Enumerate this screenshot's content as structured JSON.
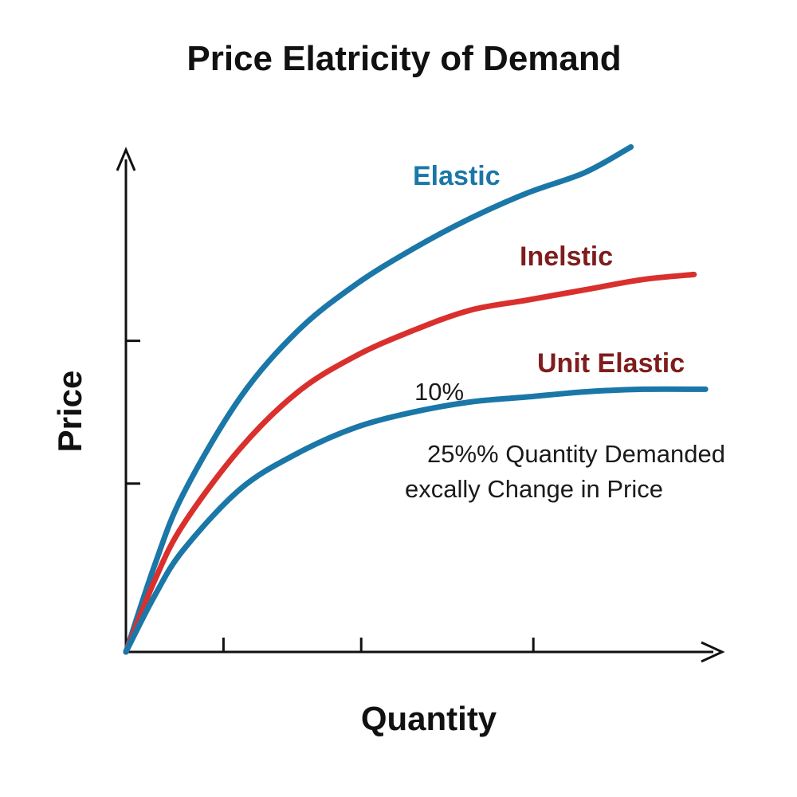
{
  "chart_data": {
    "type": "line",
    "title": "Price Elatricity of Demand",
    "xlabel": "Quantity",
    "ylabel": "Price",
    "xlim": [
      0,
      100
    ],
    "ylim": [
      0,
      100
    ],
    "x_ticks": [
      17,
      41,
      71
    ],
    "y_ticks": [
      33,
      61
    ],
    "grid": false,
    "series": [
      {
        "name": "Elastic",
        "color": "#1a77a8",
        "label_color": "#1a77a8",
        "x": [
          0,
          5,
          10,
          20,
          30,
          40,
          50,
          60,
          70,
          80,
          88
        ],
        "y": [
          0,
          17,
          31,
          50,
          63,
          72,
          79,
          85,
          90,
          94,
          99
        ]
      },
      {
        "name": "Inelstic",
        "color": "#d9302e",
        "label_color": "#7f1d1d",
        "x": [
          0,
          5,
          10,
          20,
          30,
          40,
          50,
          60,
          70,
          80,
          90,
          99
        ],
        "y": [
          0,
          14,
          25,
          40,
          51,
          58,
          63,
          67,
          69,
          71,
          73,
          74
        ]
      },
      {
        "name": "Unit Elastic",
        "color": "#1a77a8",
        "label_color": "#7f1d1d",
        "x": [
          0,
          5,
          10,
          20,
          30,
          40,
          50,
          60,
          70,
          80,
          90,
          101
        ],
        "y": [
          0,
          11,
          20,
          32,
          39,
          44,
          47,
          49,
          50,
          51,
          51.5,
          51.5
        ]
      }
    ],
    "annotations": [
      {
        "text": "10%"
      },
      {
        "text": "25%% Quantity Demanded"
      },
      {
        "text": "excally Change in Price"
      }
    ]
  }
}
